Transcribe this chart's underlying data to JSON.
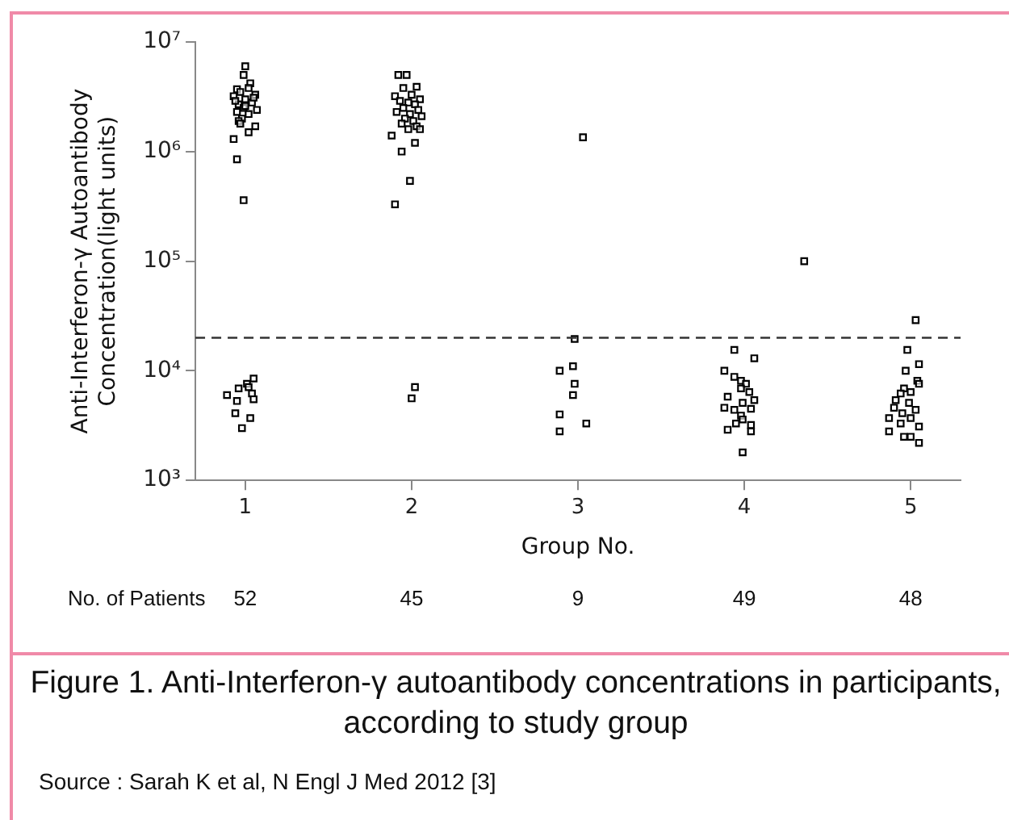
{
  "chart_data": {
    "type": "scatter",
    "title": "Figure 1. Anti-Interferon-γ autoantibody concentrations in  participants, according to study group",
    "xlabel": "Group No.",
    "ylabel": "Anti-Interferon-γ Autoantibody Concentration(light units)",
    "log": "y",
    "marker": "square",
    "grid": false,
    "legend": false,
    "xlim": [
      0.7,
      5.3
    ],
    "xticks": [
      1,
      2,
      3,
      4,
      5
    ],
    "ylim": [
      1000,
      10000000
    ],
    "yticks": [
      {
        "value": 1000,
        "label": "10³"
      },
      {
        "value": 10000,
        "label": "10⁴"
      },
      {
        "value": 100000,
        "label": "10⁵"
      },
      {
        "value": 1000000,
        "label": "10⁶"
      },
      {
        "value": 10000000,
        "label": "10⁷"
      }
    ],
    "ref_lines": [
      {
        "axis": "y",
        "value": 20000,
        "color": "#333333",
        "line_style": "dashed"
      }
    ],
    "annotations": [
      "No. of Patients",
      "52",
      "45",
      "9",
      "49",
      "48",
      "Source : Sarah K et al, N Engl J Med 2012 [3]"
    ],
    "series": [
      {
        "color": "#000000",
        "x": [
          1.0,
          0.99,
          1.03,
          0.95,
          0.97,
          1.02,
          1.06,
          0.93,
          1.0,
          1.04,
          0.96,
          0.99,
          1.07,
          0.95,
          1.02,
          0.98,
          0.96,
          1.0,
          1.05,
          0.94,
          0.97,
          1.06,
          1.02,
          0.93,
          0.95,
          0.99,
          0.89,
          0.96,
          1.01,
          1.05,
          1.02,
          0.95,
          1.04,
          1.05,
          0.94,
          1.03,
          0.98,
          1.92,
          1.97,
          1.95,
          2.03,
          1.9,
          2.0,
          2.05,
          1.93,
          1.98,
          2.02,
          1.95,
          2.04,
          1.91,
          1.99,
          2.06,
          1.96,
          2.01,
          1.94,
          2.03,
          1.98,
          2.05,
          1.88,
          2.02,
          1.94,
          1.99,
          1.9,
          2.0,
          2.02,
          3.03,
          2.98,
          2.89,
          2.97,
          2.98,
          2.97,
          2.89,
          3.05,
          2.89,
          4.36,
          3.94,
          4.06,
          3.88,
          3.94,
          3.98,
          4.01,
          3.98,
          4.03,
          3.9,
          4.06,
          3.99,
          3.88,
          3.94,
          4.04,
          3.98,
          3.99,
          3.95,
          4.04,
          3.9,
          4.04,
          3.99,
          5.03,
          4.98,
          5.05,
          4.97,
          5.04,
          5.05,
          4.96,
          5.0,
          4.94,
          4.91,
          4.99,
          4.9,
          5.03,
          4.95,
          4.87,
          5.0,
          4.94,
          5.05,
          4.87,
          4.96,
          5.0,
          5.05
        ],
        "values": [
          6000000,
          5000000,
          4200000,
          3700000,
          3500000,
          3800000,
          3300000,
          3200000,
          3000000,
          2800000,
          2700000,
          2500000,
          2400000,
          2300000,
          2200000,
          2000000,
          1900000,
          2600000,
          3100000,
          2900000,
          1800000,
          1700000,
          1500000,
          1300000,
          850000,
          360000,
          6000,
          6900,
          7600,
          8500,
          7100,
          5300,
          6200,
          5500,
          4100,
          3700,
          3000,
          5000000,
          5000000,
          3800000,
          3900000,
          3200000,
          3300000,
          3000000,
          2900000,
          2800000,
          2700000,
          2500000,
          2400000,
          2300000,
          2200000,
          2100000,
          2000000,
          1900000,
          1800000,
          1700000,
          1600000,
          1600000,
          1400000,
          1200000,
          1000000,
          540000,
          330000,
          5600,
          7100,
          1350000,
          19500,
          10000,
          11000,
          7600,
          6000,
          4000,
          3300,
          2800,
          100000,
          15500,
          13000,
          10000,
          8800,
          8100,
          7600,
          6900,
          6400,
          5800,
          5400,
          5100,
          4600,
          4400,
          4500,
          3900,
          3600,
          3300,
          3200,
          2900,
          2800,
          1800,
          29000,
          15500,
          11500,
          10000,
          8100,
          7600,
          6900,
          6400,
          6200,
          5400,
          5100,
          4600,
          4400,
          4100,
          3700,
          3700,
          3300,
          3100,
          2800,
          2500,
          2500,
          2200
        ]
      }
    ]
  }
}
